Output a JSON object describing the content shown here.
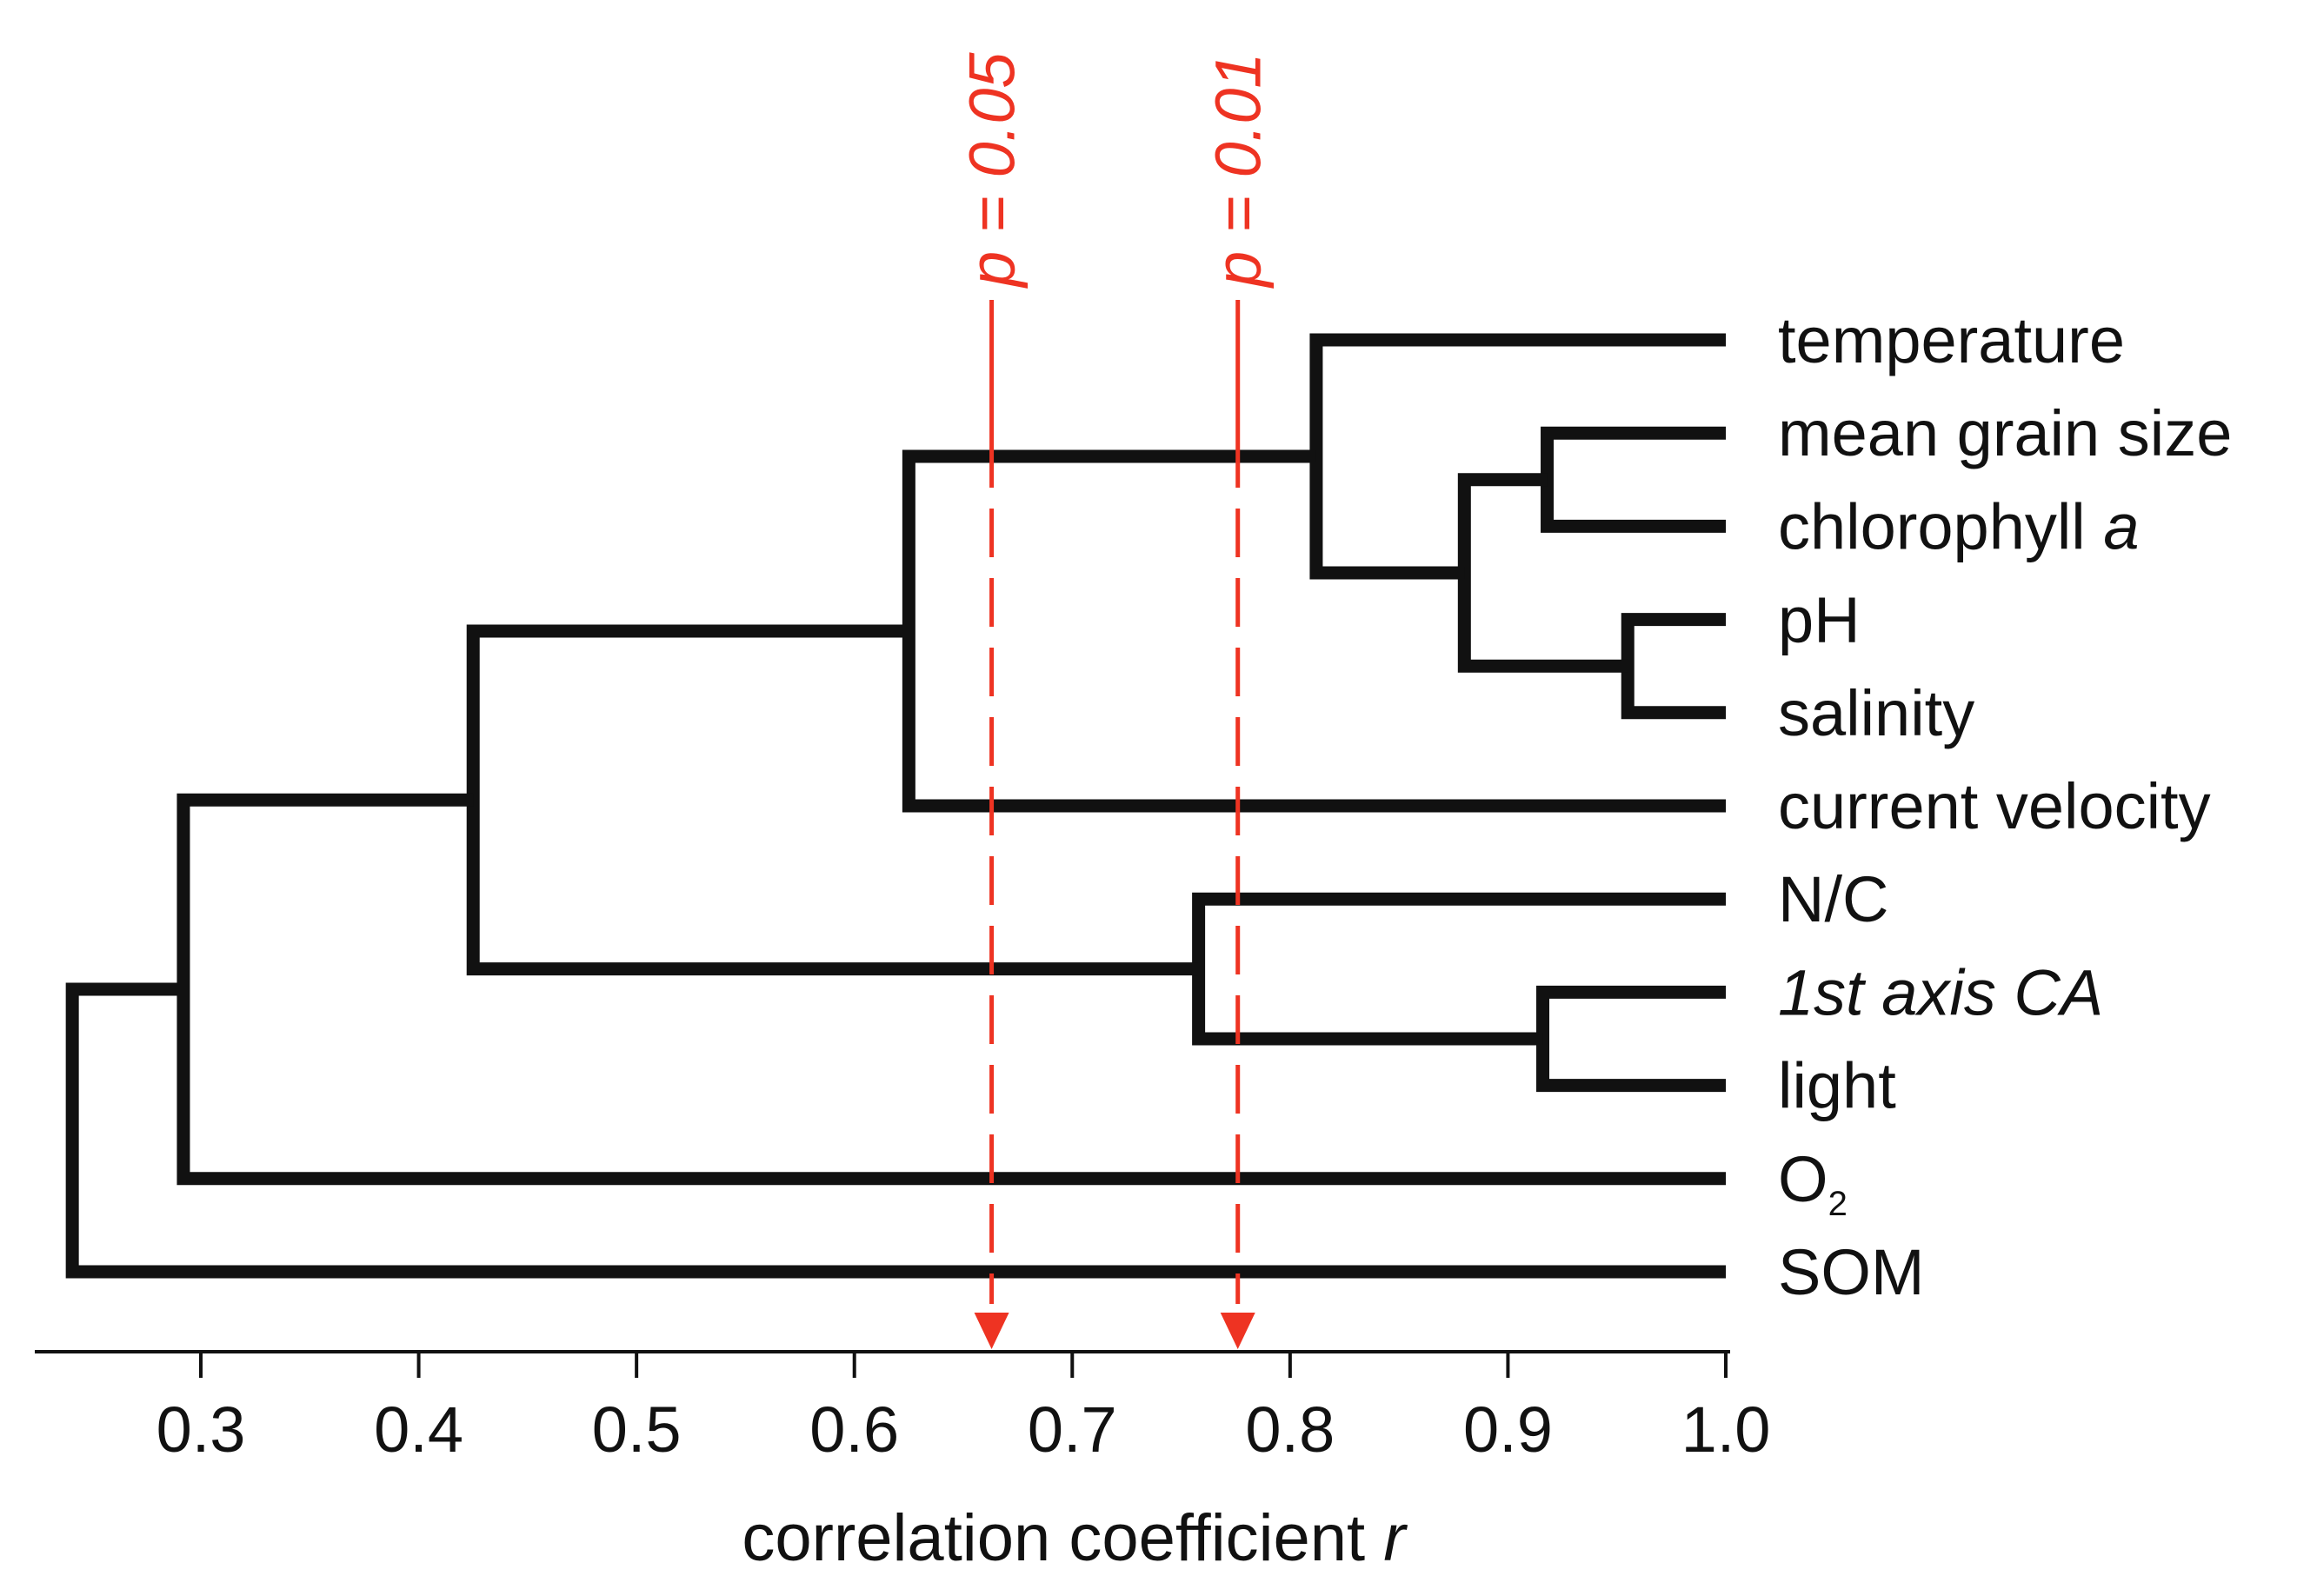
{
  "chart_data": {
    "type": "dendrogram",
    "title": "",
    "xlabel": "correlation coefficient",
    "xlabel_variable": "r",
    "xlim": [
      0.23,
      1.0
    ],
    "xticks": [
      0.3,
      0.4,
      0.5,
      0.6,
      0.7,
      0.8,
      0.9,
      1.0
    ],
    "xtick_labels": [
      "0.3",
      "0.4",
      "0.5",
      "0.6",
      "0.7",
      "0.8",
      "0.9",
      "1.0"
    ],
    "leaves": [
      {
        "id": "temperature",
        "label": "temperature"
      },
      {
        "id": "grain",
        "label": "mean grain size"
      },
      {
        "id": "chl",
        "label": "chlorophyll",
        "label_italic": "a"
      },
      {
        "id": "ph",
        "label": "pH"
      },
      {
        "id": "sal",
        "label": "salinity"
      },
      {
        "id": "cur",
        "label": "current velocity"
      },
      {
        "id": "nc",
        "label": "N/C"
      },
      {
        "id": "ca",
        "label": "1st axis CA",
        "italic": true
      },
      {
        "id": "light",
        "label": "light"
      },
      {
        "id": "o2",
        "label": "O",
        "subscript": "2"
      },
      {
        "id": "som",
        "label": "SOM"
      }
    ],
    "merges": [
      {
        "id": "m1",
        "children": [
          "ph",
          "sal"
        ],
        "r": 0.955
      },
      {
        "id": "m2",
        "children": [
          "grain",
          "chl"
        ],
        "r": 0.918
      },
      {
        "id": "m3",
        "children": [
          "ca",
          "light"
        ],
        "r": 0.916
      },
      {
        "id": "m4",
        "children": [
          "m2",
          "m1"
        ],
        "r": 0.88
      },
      {
        "id": "m5",
        "children": [
          "temperature",
          "m4"
        ],
        "r": 0.812
      },
      {
        "id": "m6",
        "children": [
          "nc",
          "m3"
        ],
        "r": 0.758
      },
      {
        "id": "m7",
        "children": [
          "m5",
          "cur"
        ],
        "r": 0.625
      },
      {
        "id": "m8",
        "children": [
          "m7",
          "m6"
        ],
        "r": 0.425
      },
      {
        "id": "m9",
        "children": [
          "m8",
          "o2"
        ],
        "r": 0.292
      },
      {
        "id": "m10",
        "children": [
          "m9",
          "som"
        ],
        "r": 0.241
      }
    ],
    "significance_lines": [
      {
        "name": "p05",
        "r": 0.663,
        "variable": "p",
        "text": " = 0.05",
        "color": "#ee3322"
      },
      {
        "name": "p01",
        "r": 0.776,
        "variable": "p",
        "text": " = 0.01",
        "color": "#ee3322"
      }
    ],
    "tree_color": "#111111"
  }
}
